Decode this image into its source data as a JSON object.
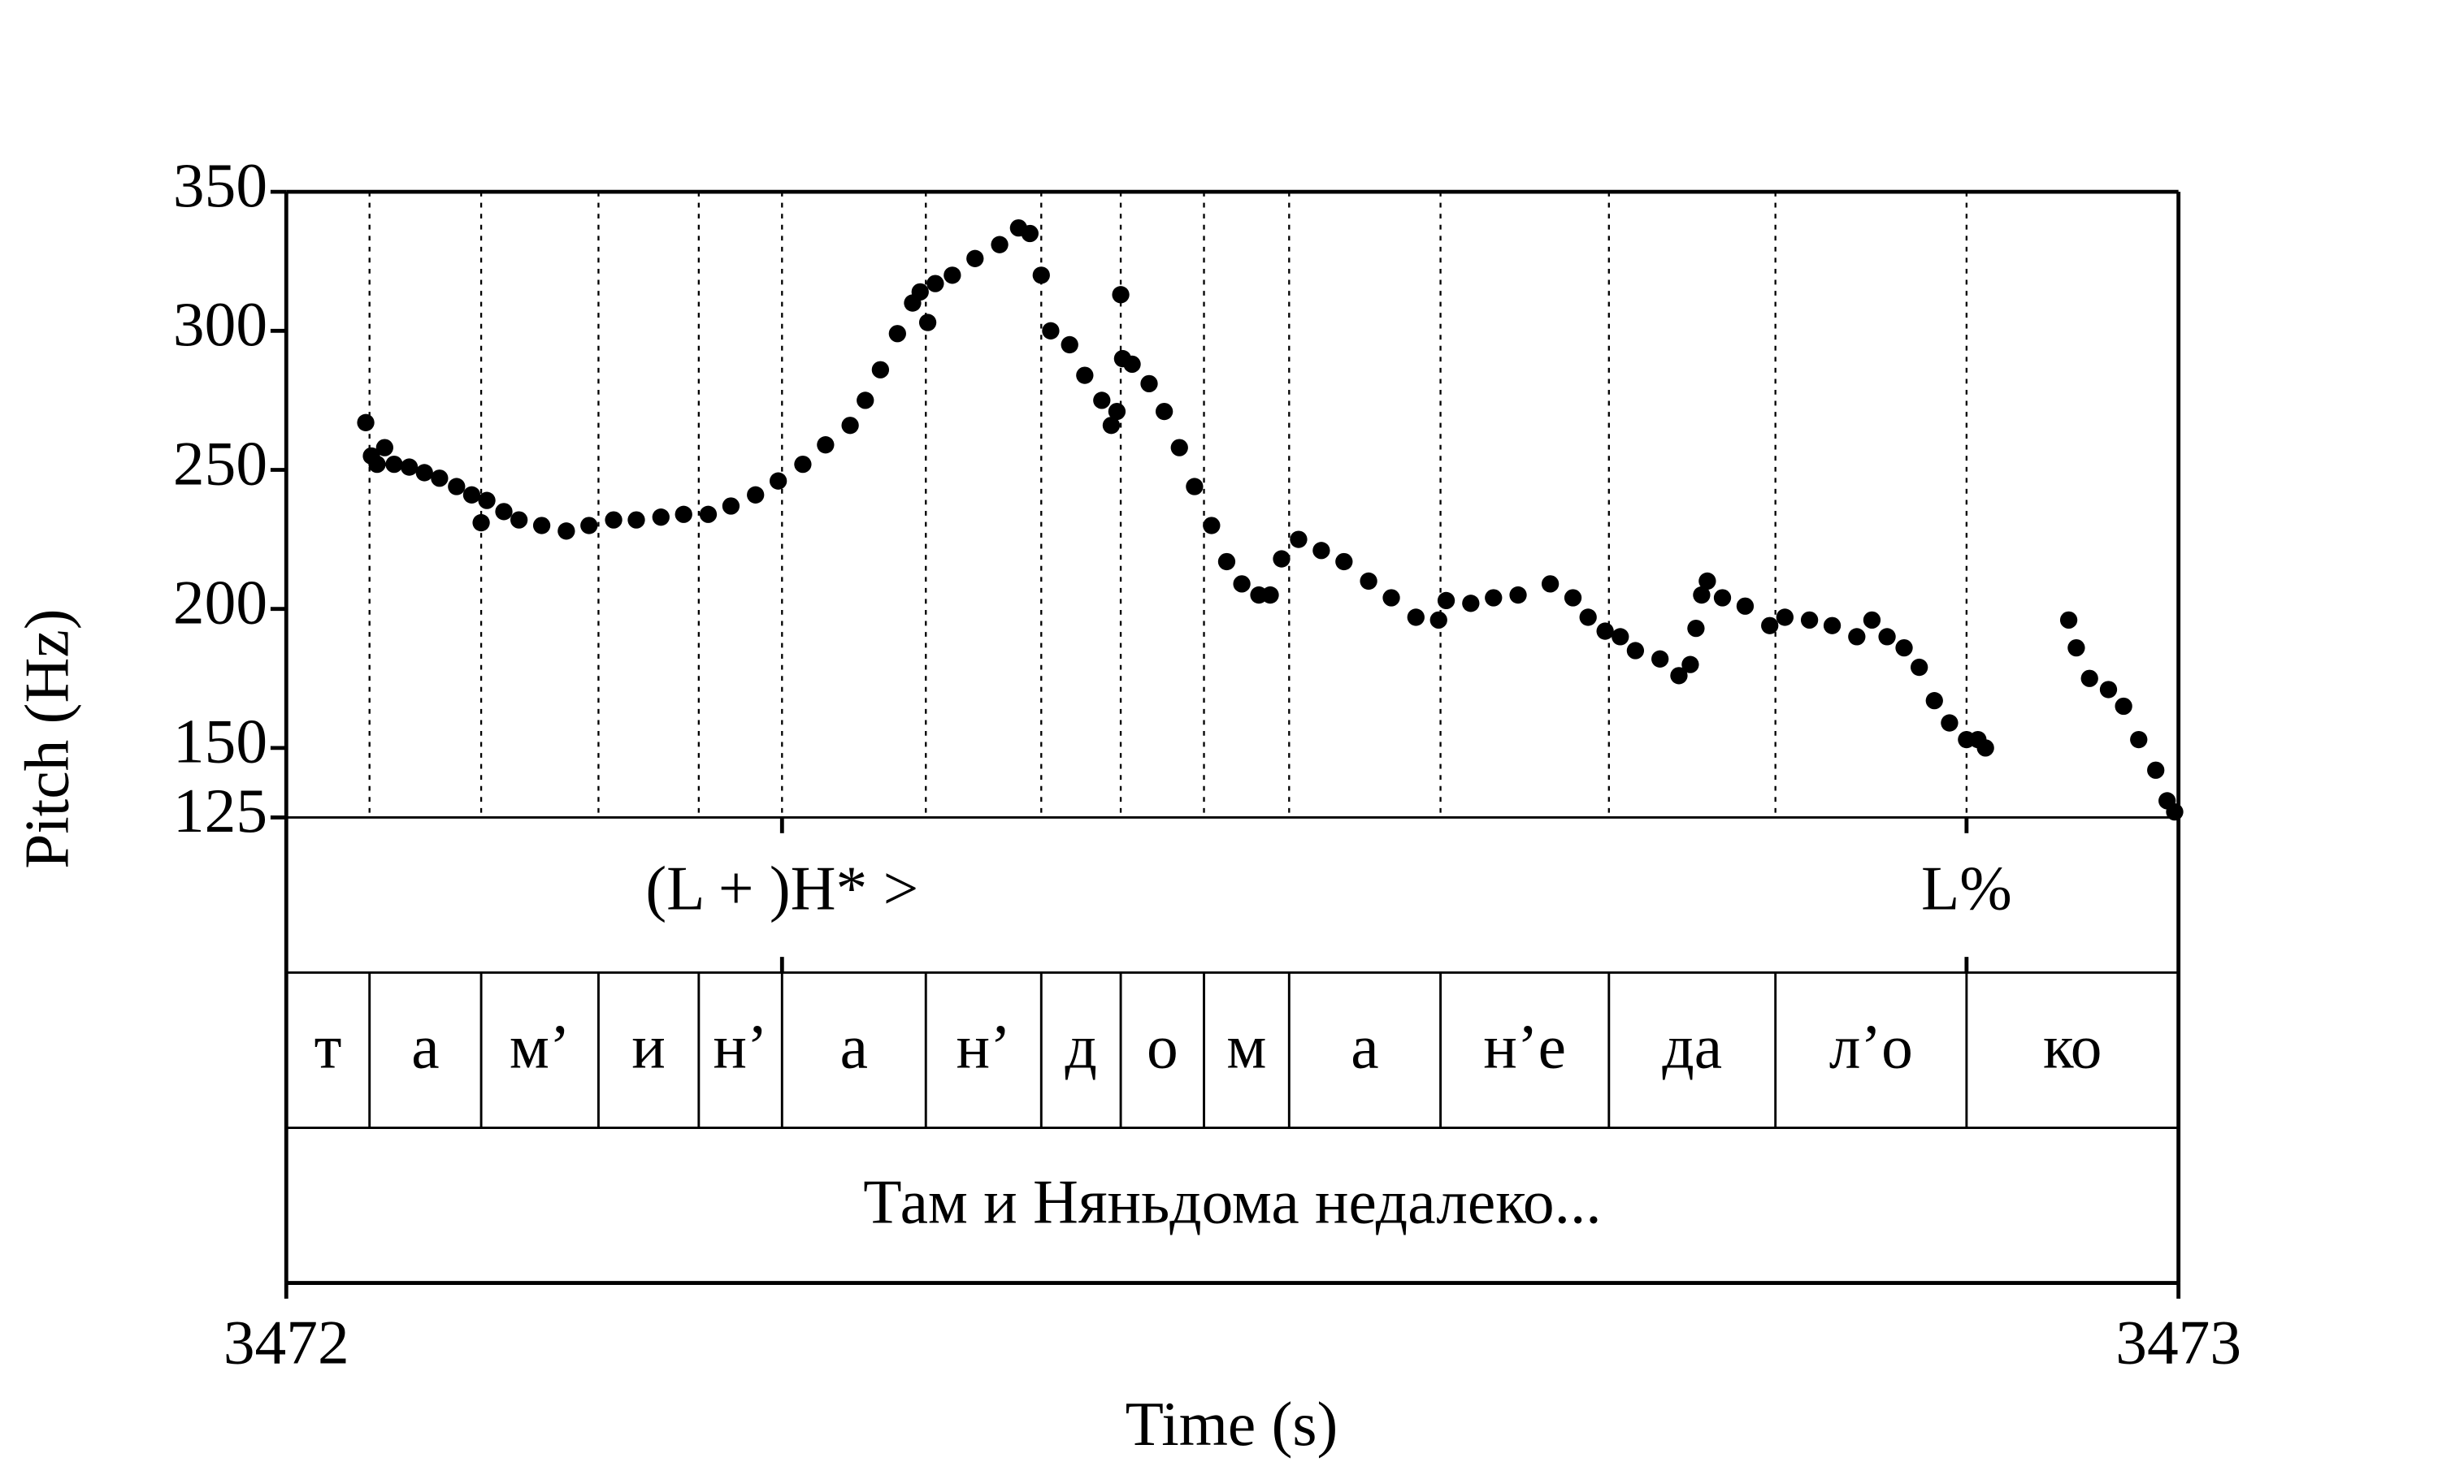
{
  "chart_data": {
    "type": "scatter",
    "ylabel": "Pitch (Hz)",
    "xlabel": "Time (s)",
    "color": "#000000",
    "xlim": [
      3472,
      3473
    ],
    "xticks": [
      3472,
      3473
    ],
    "ylim": [
      125,
      350
    ],
    "yticks": [
      125,
      150,
      200,
      250,
      300,
      350
    ],
    "x": [
      3472.042,
      3472.045,
      3472.048,
      3472.052,
      3472.057,
      3472.065,
      3472.073,
      3472.081,
      3472.09,
      3472.098,
      3472.103,
      3472.106,
      3472.115,
      3472.123,
      3472.135,
      3472.148,
      3472.16,
      3472.173,
      3472.185,
      3472.198,
      3472.21,
      3472.223,
      3472.235,
      3472.248,
      3472.26,
      3472.273,
      3472.285,
      3472.298,
      3472.306,
      3472.314,
      3472.323,
      3472.331,
      3472.335,
      3472.339,
      3472.343,
      3472.352,
      3472.364,
      3472.377,
      3472.387,
      3472.393,
      3472.399,
      3472.404,
      3472.414,
      3472.422,
      3472.431,
      3472.436,
      3472.439,
      3472.441,
      3472.442,
      3472.447,
      3472.456,
      3472.464,
      3472.472,
      3472.48,
      3472.489,
      3472.497,
      3472.505,
      3472.514,
      3472.52,
      3472.526,
      3472.535,
      3472.547,
      3472.559,
      3472.572,
      3472.584,
      3472.597,
      3472.609,
      3472.613,
      3472.626,
      3472.638,
      3472.651,
      3472.668,
      3472.68,
      3472.688,
      3472.697,
      3472.705,
      3472.713,
      3472.726,
      3472.736,
      3472.742,
      3472.745,
      3472.748,
      3472.751,
      3472.759,
      3472.771,
      3472.784,
      3472.792,
      3472.805,
      3472.817,
      3472.83,
      3472.838,
      3472.846,
      3472.855,
      3472.863,
      3472.871,
      3472.879,
      3472.888,
      3472.894,
      3472.898,
      3472.942,
      3472.946,
      3472.953,
      3472.963,
      3472.971,
      3472.979,
      3472.988,
      3472.994,
      3472.998
    ],
    "values": [
      267,
      255,
      252,
      258,
      252,
      251,
      249,
      247,
      244,
      241,
      231,
      239,
      235,
      232,
      230,
      228,
      230,
      232,
      232,
      233,
      234,
      234,
      237,
      241,
      246,
      252,
      259,
      266,
      275,
      286,
      299,
      310,
      314,
      303,
      317,
      320,
      326,
      331,
      337,
      335,
      320,
      300,
      295,
      284,
      275,
      266,
      271,
      313,
      290,
      288,
      281,
      271,
      258,
      244,
      230,
      217,
      209,
      205,
      205,
      218,
      225,
      221,
      217,
      210,
      204,
      197,
      196,
      203,
      202,
      204,
      205,
      209,
      204,
      197,
      192,
      190,
      185,
      182,
      176,
      180,
      193,
      205,
      210,
      204,
      201,
      194,
      197,
      196,
      194,
      190,
      196,
      190,
      186,
      179,
      167,
      159,
      153,
      153,
      150,
      196,
      186,
      175,
      171,
      165,
      153,
      142,
      131,
      127
    ],
    "tiers": [
      {
        "kind": "point",
        "points": [
          3472.262,
          3472.888
        ],
        "labels": [
          "(L + )H* >",
          "L%"
        ]
      },
      {
        "kind": "interval",
        "boundaries": [
          3472.044,
          3472.103,
          3472.165,
          3472.218,
          3472.262,
          3472.338,
          3472.399,
          3472.441,
          3472.485,
          3472.53,
          3472.61,
          3472.699,
          3472.787,
          3472.888
        ],
        "labels": [
          "т",
          "а",
          "м’",
          "и",
          "н’",
          "а",
          "н’",
          "д",
          "о",
          "м",
          "а",
          "н’е",
          "да",
          "л’о",
          "ко"
        ]
      },
      {
        "kind": "interval",
        "boundaries": [],
        "labels": [
          "Там и Няньдома недалеко..."
        ]
      }
    ]
  }
}
